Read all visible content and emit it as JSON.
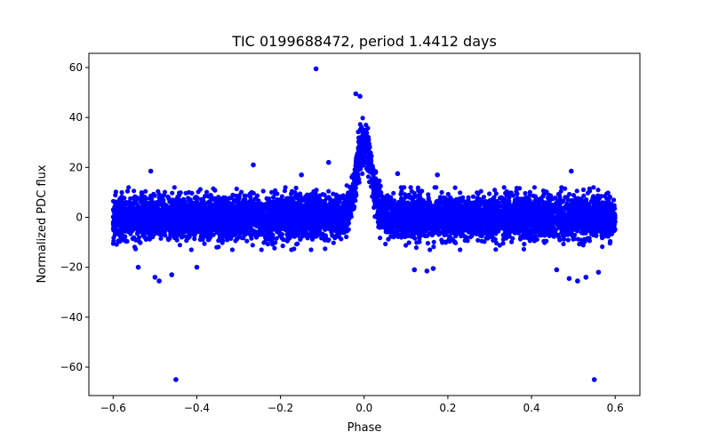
{
  "chart_data": {
    "type": "scatter",
    "title": "TIC 0199688472, period 1.4412 days",
    "xlabel": "Phase",
    "ylabel": "Normalized PDC flux",
    "xlim": [
      -0.658,
      0.659
    ],
    "ylim": [
      -71.4,
      65.7
    ],
    "xticks": [
      -0.6,
      -0.4,
      -0.2,
      0.0,
      0.2,
      0.4,
      0.6
    ],
    "xtick_labels": [
      "−0.6",
      "−0.4",
      "−0.2",
      "0.0",
      "0.2",
      "0.4",
      "0.6"
    ],
    "yticks": [
      -60,
      -40,
      -20,
      0,
      20,
      40,
      60
    ],
    "ytick_labels": [
      "−60",
      "−40",
      "−20",
      "0",
      "20",
      "40",
      "60"
    ],
    "grid": false,
    "marker_color": "#0000ff",
    "series": [
      {
        "name": "flux",
        "phase_range": [
          -0.6,
          0.6
        ],
        "baseline_mean": 0,
        "baseline_std": 4.2,
        "peak": {
          "center": 0.0,
          "amplitude": 30,
          "sigma": 0.018
        },
        "n_points": 7000,
        "outliers": [
          [
            -0.115,
            59.5
          ],
          [
            -0.45,
            -65
          ],
          [
            0.55,
            -65
          ],
          [
            -0.085,
            22
          ],
          [
            -0.265,
            21
          ],
          [
            -0.51,
            18.5
          ],
          [
            0.495,
            18.5
          ],
          [
            -0.49,
            -25.5
          ],
          [
            -0.5,
            -24
          ],
          [
            -0.46,
            -23
          ],
          [
            0.49,
            -24.5
          ],
          [
            0.51,
            -25.5
          ],
          [
            0.53,
            -24
          ],
          [
            0.56,
            -22
          ],
          [
            0.12,
            -21
          ],
          [
            0.15,
            -21.5
          ],
          [
            0.165,
            -20.5
          ],
          [
            0.08,
            17.5
          ],
          [
            0.175,
            17
          ],
          [
            -0.54,
            -20
          ],
          [
            -0.4,
            -20
          ],
          [
            0.46,
            -21
          ],
          [
            -0.15,
            17
          ],
          [
            -0.02,
            49.5
          ],
          [
            -0.01,
            48.5
          ]
        ]
      }
    ]
  }
}
